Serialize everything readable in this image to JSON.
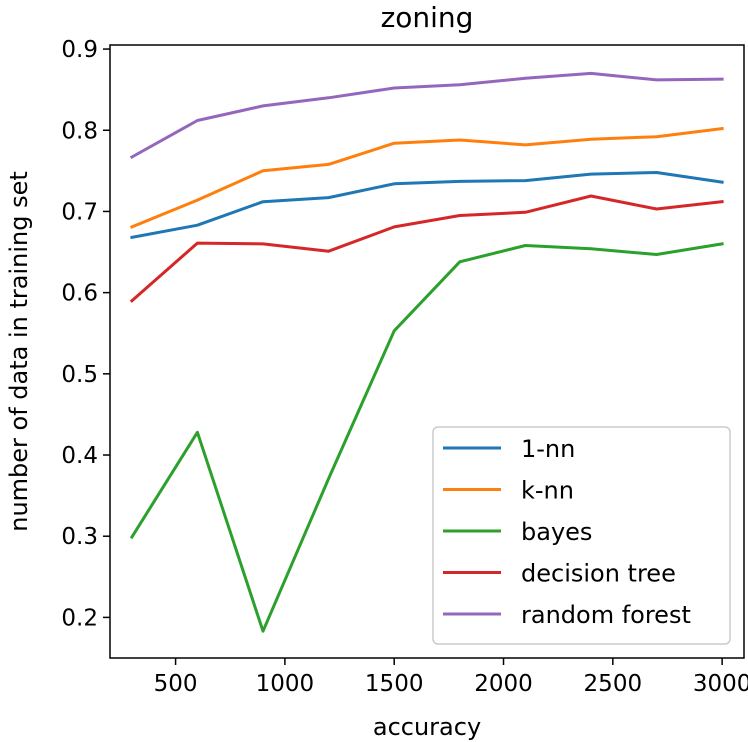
{
  "chart_data": {
    "type": "line",
    "title": "zoning",
    "xlabel": "accuracy",
    "ylabel": "number of data in training set",
    "x": [
      300,
      600,
      900,
      1200,
      1500,
      1800,
      2100,
      2400,
      2700,
      3000
    ],
    "xlim": [
      200,
      3100
    ],
    "ylim": [
      0.15,
      0.905
    ],
    "xticks": [
      500,
      1000,
      1500,
      2000,
      2500,
      3000
    ],
    "yticks": [
      0.2,
      0.3,
      0.4,
      0.5,
      0.6,
      0.7,
      0.8,
      0.9
    ],
    "xtick_labels": [
      "500",
      "1000",
      "1500",
      "2000",
      "2500",
      "3000"
    ],
    "ytick_labels": [
      "0.2",
      "0.3",
      "0.4",
      "0.5",
      "0.6",
      "0.7",
      "0.8",
      "0.9"
    ],
    "grid": false,
    "legend_position": "lower-right",
    "series": [
      {
        "name": "1-nn",
        "color": "#1f77b4",
        "values": [
          0.668,
          0.683,
          0.712,
          0.717,
          0.734,
          0.737,
          0.738,
          0.746,
          0.748,
          0.736
        ]
      },
      {
        "name": "k-nn",
        "color": "#ff7f0e",
        "values": [
          0.681,
          0.714,
          0.75,
          0.758,
          0.784,
          0.788,
          0.782,
          0.789,
          0.792,
          0.802
        ]
      },
      {
        "name": "bayes",
        "color": "#2ca02c",
        "values": [
          0.299,
          0.428,
          0.183,
          0.371,
          0.553,
          0.638,
          0.658,
          0.654,
          0.647,
          0.66
        ]
      },
      {
        "name": "decision tree",
        "color": "#d62728",
        "values": [
          0.59,
          0.661,
          0.66,
          0.651,
          0.681,
          0.695,
          0.699,
          0.719,
          0.703,
          0.712
        ]
      },
      {
        "name": "random forest",
        "color": "#9467bd",
        "values": [
          0.767,
          0.812,
          0.83,
          0.84,
          0.852,
          0.856,
          0.864,
          0.87,
          0.862,
          0.863
        ]
      }
    ]
  }
}
